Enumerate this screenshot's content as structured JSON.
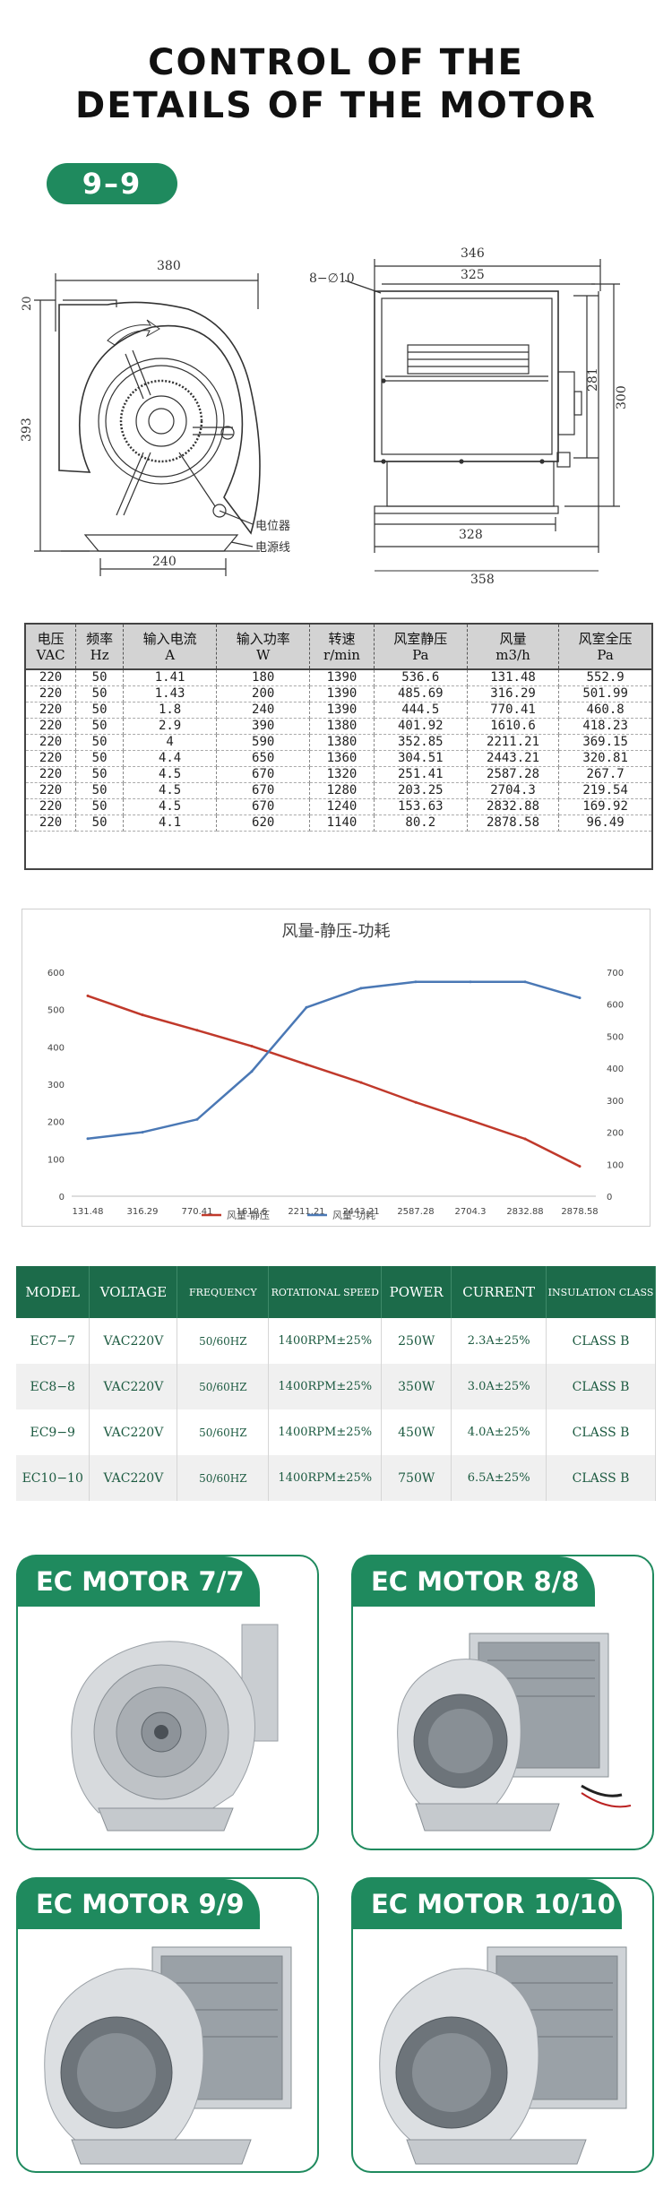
{
  "header": {
    "title_line1": "CONTROL OF THE",
    "title_line2": "DETAILS OF THE MOTOR",
    "badge": "9–9"
  },
  "drawing": {
    "left_width": "380",
    "left_bottom": "240",
    "left_height": "393",
    "left_top_small": "20",
    "label_pot": "电位器",
    "label_cable": "电源线",
    "hole_note": "8−∅10",
    "right_top_outer": "346",
    "right_top_inner": "325",
    "right_height_inner": "281",
    "right_height_outer": "300",
    "right_bottom_inner": "328",
    "right_bottom_outer": "358"
  },
  "spec_table": {
    "headers": [
      [
        "电压",
        "VAC"
      ],
      [
        "频率",
        "Hz"
      ],
      [
        "输入电流",
        "A"
      ],
      [
        "输入功率",
        "W"
      ],
      [
        "转速",
        "r/min"
      ],
      [
        "风室静压",
        "Pa"
      ],
      [
        "风量",
        "m3/h"
      ],
      [
        "风室全压",
        "Pa"
      ]
    ],
    "rows": [
      [
        "220",
        "50",
        "1.41",
        "180",
        "1390",
        "536.6",
        "131.48",
        "552.9"
      ],
      [
        "220",
        "50",
        "1.43",
        "200",
        "1390",
        "485.69",
        "316.29",
        "501.99"
      ],
      [
        "220",
        "50",
        "1.8",
        "240",
        "1390",
        "444.5",
        "770.41",
        "460.8"
      ],
      [
        "220",
        "50",
        "2.9",
        "390",
        "1380",
        "401.92",
        "1610.6",
        "418.23"
      ],
      [
        "220",
        "50",
        "4",
        "590",
        "1380",
        "352.85",
        "2211.21",
        "369.15"
      ],
      [
        "220",
        "50",
        "4.4",
        "650",
        "1360",
        "304.51",
        "2443.21",
        "320.81"
      ],
      [
        "220",
        "50",
        "4.5",
        "670",
        "1320",
        "251.41",
        "2587.28",
        "267.7"
      ],
      [
        "220",
        "50",
        "4.5",
        "670",
        "1280",
        "203.25",
        "2704.3",
        "219.54"
      ],
      [
        "220",
        "50",
        "4.5",
        "670",
        "1240",
        "153.63",
        "2832.88",
        "169.92"
      ],
      [
        "220",
        "50",
        "4.1",
        "620",
        "1140",
        "80.2",
        "2878.58",
        "96.49"
      ]
    ]
  },
  "chart_data": {
    "type": "line",
    "title": "风量-静压-功耗",
    "categories": [
      "131.48",
      "316.29",
      "770.41",
      "1610.6",
      "2211.21",
      "2443.21",
      "2587.28",
      "2704.3",
      "2832.88",
      "2878.58"
    ],
    "y_left_ticks": [
      "0",
      "100",
      "200",
      "300",
      "400",
      "500",
      "600"
    ],
    "y_right_ticks": [
      "0",
      "100",
      "200",
      "300",
      "400",
      "500",
      "600",
      "700"
    ],
    "ylim_left": [
      0,
      600
    ],
    "ylim_right": [
      0,
      700
    ],
    "series": [
      {
        "name": "风量-静压",
        "axis": "left",
        "color": "#c0392b",
        "values": [
          536.6,
          485.69,
          444.5,
          401.92,
          352.85,
          304.51,
          251.41,
          203.25,
          153.63,
          80.2
        ]
      },
      {
        "name": "风量-功耗",
        "axis": "right",
        "color": "#4a78b5",
        "values": [
          180,
          200,
          240,
          390,
          590,
          650,
          670,
          670,
          670,
          620
        ]
      }
    ],
    "legend": "bottom-center",
    "grid": false
  },
  "model_table": {
    "headers": [
      "MODEL",
      "VOLTAGE",
      "FREQUENCY",
      "ROTATIONAL SPEED",
      "POWER",
      "CURRENT",
      "INSULATION CLASS"
    ],
    "rows": [
      [
        "EC7−7",
        "VAC220V",
        "50/60HZ",
        "1400RPM±25%",
        "250W",
        "2.3A±25%",
        "CLASS B"
      ],
      [
        "EC8−8",
        "VAC220V",
        "50/60HZ",
        "1400RPM±25%",
        "350W",
        "3.0A±25%",
        "CLASS B"
      ],
      [
        "EC9−9",
        "VAC220V",
        "50/60HZ",
        "1400RPM±25%",
        "450W",
        "4.0A±25%",
        "CLASS B"
      ],
      [
        "EC10−10",
        "VAC220V",
        "50/60HZ",
        "1400RPM±25%",
        "750W",
        "6.5A±25%",
        "CLASS B"
      ]
    ]
  },
  "products": [
    {
      "label": "EC MOTOR 7/7"
    },
    {
      "label": "EC MOTOR 8/8"
    },
    {
      "label": "EC MOTOR 9/9"
    },
    {
      "label": "EC MOTOR 10/10"
    }
  ],
  "colors": {
    "brand_green": "#1f8a5e",
    "table_green": "#1c6b4a",
    "static_pressure": "#c0392b",
    "power": "#4a78b5"
  }
}
